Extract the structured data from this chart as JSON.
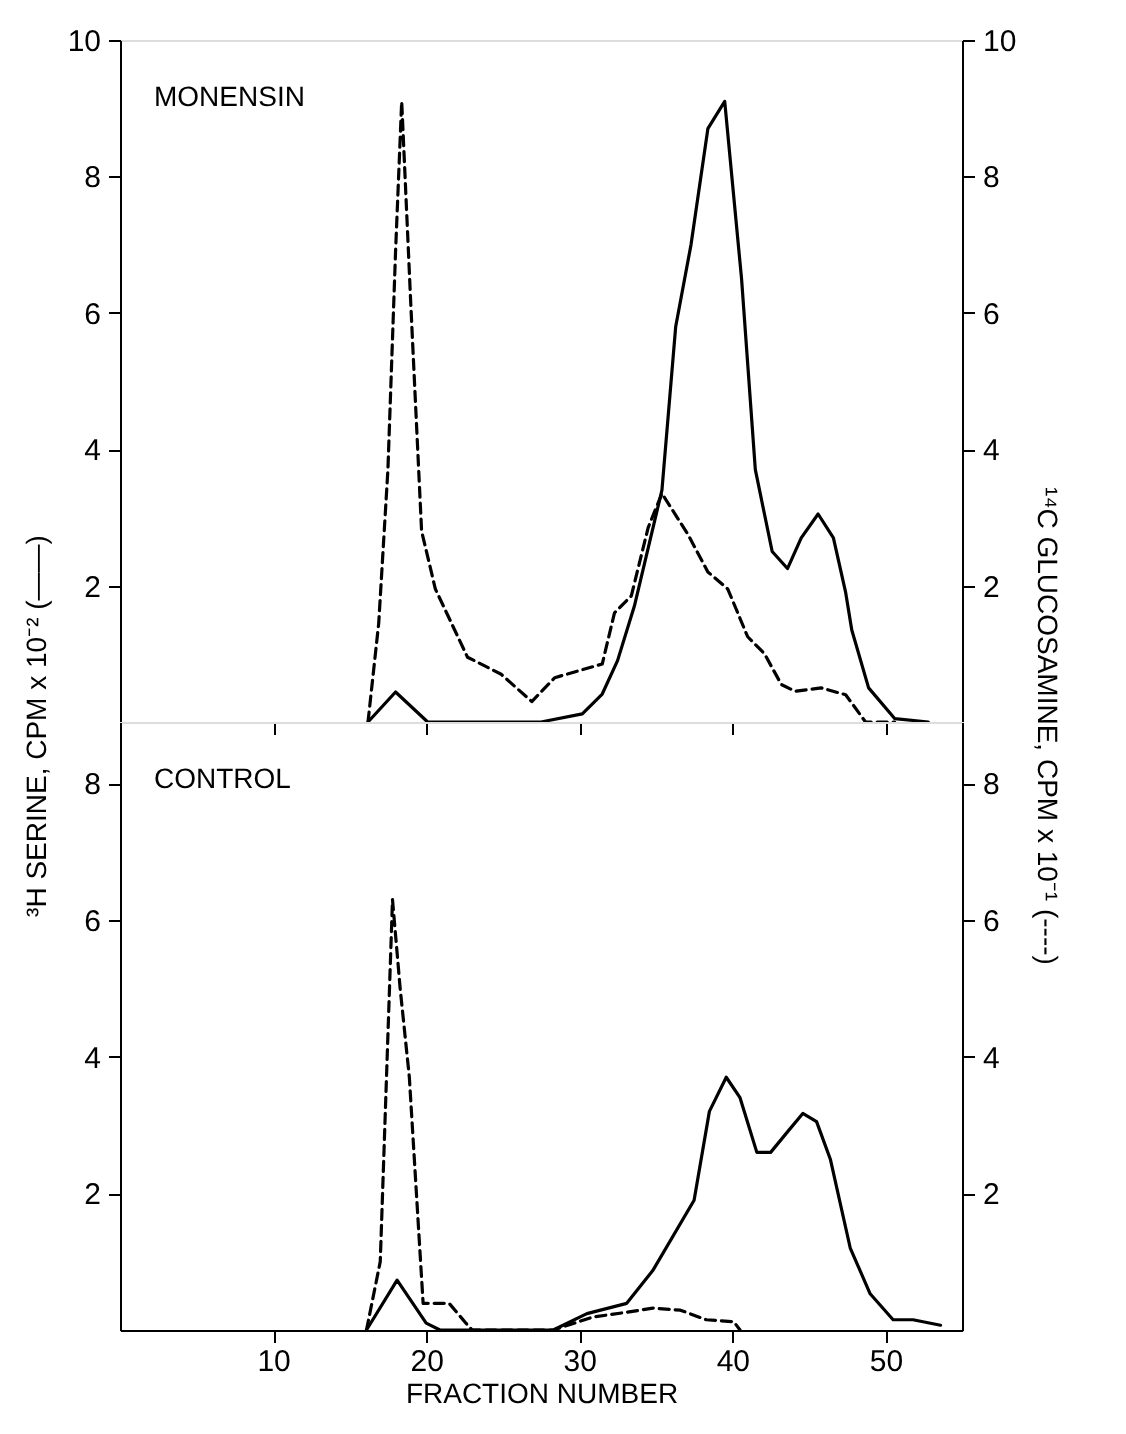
{
  "chart_data": [
    {
      "type": "line",
      "annotations": [
        "MONENSIN"
      ],
      "ylabel": "³H SERINE, CPM x 10⁻² (——)",
      "y2label": "¹⁴C GLUCOSAMINE, CPM x 10⁻¹ (----)",
      "xlim": [
        0,
        55
      ],
      "xticks": [
        10,
        20,
        30,
        40,
        50
      ],
      "ylim": [
        0,
        10
      ],
      "yticks": [
        2,
        4,
        6,
        8,
        10
      ],
      "y2lim": [
        0,
        10
      ],
      "y2ticks": [
        2,
        4,
        6,
        8,
        10
      ],
      "tick_labels": "y",
      "grid": false,
      "series": [
        {
          "color": "#000000",
          "line_style": "solid",
          "x": [
            16.2,
            18,
            20.1,
            27.5,
            30.2,
            31.5,
            32.5,
            33.6,
            35.4,
            36.3,
            37.3,
            38.4,
            39.5,
            40.6,
            41.5,
            42.6,
            43.6,
            44.5,
            45.6,
            46.6,
            47.4,
            47.8,
            48.9,
            50.6,
            52.8
          ],
          "values": [
            0,
            0.44,
            0,
            0,
            0.12,
            0.41,
            0.9,
            1.7,
            3.4,
            5.8,
            7.0,
            8.7,
            9.1,
            6.5,
            3.7,
            2.5,
            2.25,
            2.7,
            3.05,
            2.7,
            1.9,
            1.35,
            0.5,
            0.05,
            0
          ]
        },
        {
          "color": "#000000",
          "line_style": "dashed",
          "axis": "y2",
          "x": [
            16.2,
            16.9,
            17.5,
            18,
            18.4,
            19,
            19.7,
            20.6,
            22.7,
            24.9,
            26.9,
            28.4,
            31.5,
            32.3,
            33.4,
            34.5,
            35.4,
            37.1,
            38.4,
            39.7,
            41,
            42.1,
            43.2,
            44.1,
            45.8,
            47.4,
            48.7,
            50.6
          ],
          "values": [
            0,
            1.45,
            3.7,
            6.9,
            9.1,
            6.1,
            2.8,
            1.95,
            0.95,
            0.7,
            0.3,
            0.65,
            0.85,
            1.6,
            1.85,
            2.85,
            3.35,
            2.75,
            2.2,
            1.95,
            1.25,
            1.0,
            0.55,
            0.45,
            0.5,
            0.4,
            0,
            0
          ]
        }
      ]
    },
    {
      "type": "line",
      "annotations": [
        "CONTROL"
      ],
      "xlabel": "FRACTION NUMBER",
      "xlim": [
        0,
        55
      ],
      "xticks": [
        10,
        20,
        30,
        40,
        50
      ],
      "ylim": [
        0,
        8.9
      ],
      "yticks": [
        2,
        4,
        6,
        8
      ],
      "y2lim": [
        0,
        8.9
      ],
      "y2ticks": [
        2,
        4,
        6,
        8
      ],
      "grid": false,
      "series": [
        {
          "color": "#000000",
          "line_style": "solid",
          "x": [
            16.1,
            18.1,
            20,
            20.9,
            28.3,
            30.5,
            33.1,
            34.8,
            37.5,
            38.5,
            39.6,
            40.5,
            41.6,
            42.5,
            43.6,
            44.6,
            45.5,
            46.4,
            47.7,
            49,
            50.5,
            51.8,
            53.6
          ],
          "values": [
            0,
            0.73,
            0.1,
            0,
            0,
            0.24,
            0.39,
            0.87,
            1.9,
            3.2,
            3.7,
            3.4,
            2.6,
            2.6,
            2.9,
            3.17,
            3.05,
            2.5,
            1.2,
            0.53,
            0.15,
            0.15,
            0.07
          ]
        },
        {
          "color": "#000000",
          "line_style": "dashed",
          "axis": "y2",
          "x": [
            16.1,
            17,
            17.8,
            18.3,
            18.9,
            19.8,
            20.5,
            21.5,
            22.6,
            23,
            28.3,
            30.9,
            33.1,
            34.8,
            36.6,
            38.3,
            40.1,
            40.5
          ],
          "values": [
            0,
            1.0,
            6.3,
            5.0,
            3.7,
            0.39,
            0.39,
            0.39,
            0.1,
            0,
            0,
            0.19,
            0.26,
            0.32,
            0.29,
            0.15,
            0.12,
            0
          ]
        }
      ]
    }
  ]
}
